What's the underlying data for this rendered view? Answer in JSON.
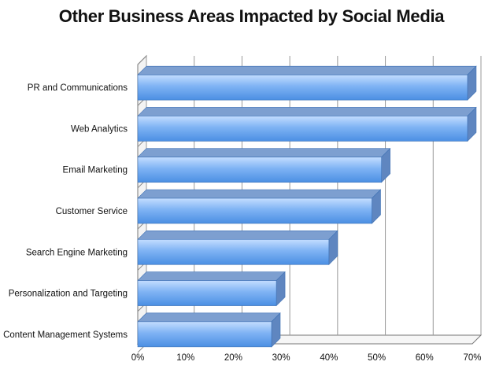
{
  "chart_data": {
    "type": "bar",
    "orientation": "horizontal",
    "title": "Other Business Areas Impacted by Social Media",
    "categories": [
      "PR and Communications",
      "Web Analytics",
      "Email Marketing",
      "Customer Service",
      "Search Engine Marketing",
      "Personalization and Targeting",
      "Content Management Systems"
    ],
    "values": [
      69,
      69,
      51,
      49,
      40,
      29,
      28
    ],
    "xlim": [
      0,
      70
    ],
    "xticks": [
      "0%",
      "10%",
      "20%",
      "30%",
      "40%",
      "50%",
      "60%",
      "70%"
    ],
    "grid": true,
    "legend": "none",
    "colors": {
      "bar_top": "#c4ddff",
      "bar_mid": "#7fb3f4",
      "bar_bottom": "#4b8fe3",
      "bar_edge": "#3f72b5",
      "bar_cap": "#7d9fd0",
      "bar_side": "#5f86c0",
      "grid": "#999999",
      "axis": "#777777"
    }
  }
}
